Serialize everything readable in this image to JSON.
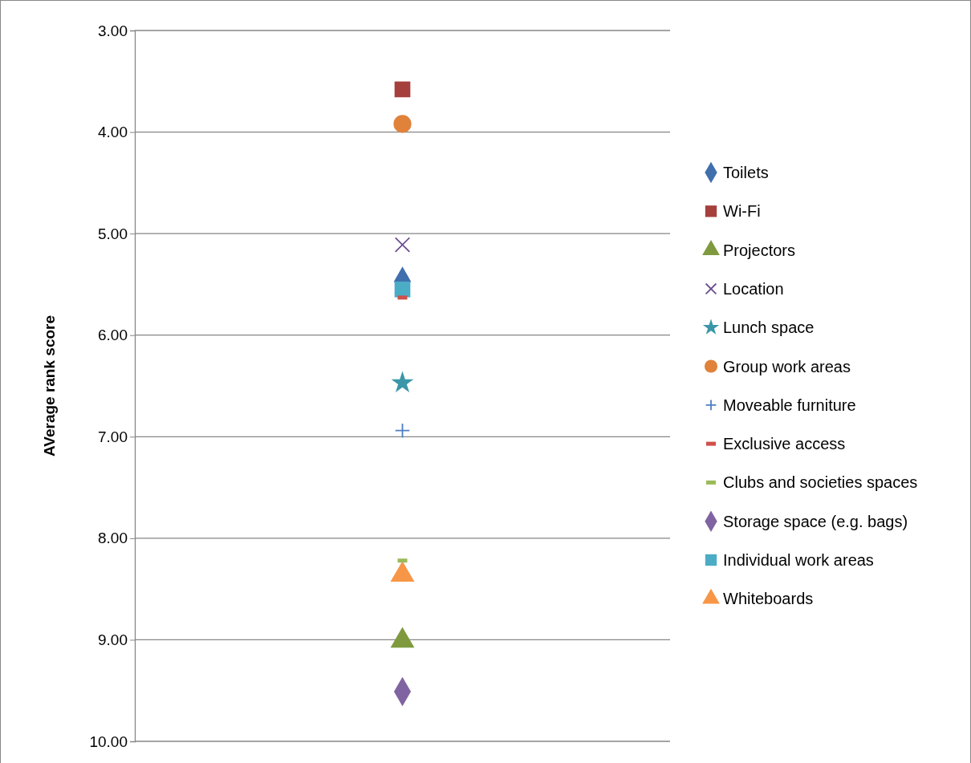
{
  "chart_data": {
    "type": "scatter",
    "ylabel": "AVerage rank score",
    "categories": [
      null
    ],
    "ylim": [
      10,
      3
    ],
    "yticks": [
      {
        "value": 3,
        "label": "3.00"
      },
      {
        "value": 4,
        "label": "4.00"
      },
      {
        "value": 5,
        "label": "5.00"
      },
      {
        "value": 6,
        "label": "6.00"
      },
      {
        "value": 7,
        "label": "7.00"
      },
      {
        "value": 8,
        "label": "8.00"
      },
      {
        "value": 9,
        "label": "9.00"
      },
      {
        "value": 10,
        "label": "10.00"
      }
    ],
    "grid": "y",
    "legend": "right",
    "tick_labels": "y",
    "series": [
      {
        "name": "Toilets",
        "color": "#3f6fad",
        "marker": "diamond",
        "values": [
          5.47
        ]
      },
      {
        "name": "Wi-Fi",
        "color": "#a5403c",
        "marker": "square",
        "values": [
          3.58
        ]
      },
      {
        "name": "Projectors",
        "color": "#7f9a3e",
        "marker": "triangle",
        "values": [
          9.01
        ]
      },
      {
        "name": "Location",
        "color": "#6a4f8f",
        "marker": "cross",
        "values": [
          5.11
        ]
      },
      {
        "name": "Lunch space",
        "color": "#3a96a8",
        "marker": "star",
        "values": [
          6.47
        ]
      },
      {
        "name": "Group work areas",
        "color": "#e0823a",
        "marker": "circle",
        "values": [
          3.92
        ]
      },
      {
        "name": "Moveable furniture",
        "color": "#4d7fc4",
        "marker": "plus",
        "values": [
          6.94
        ]
      },
      {
        "name": "Exclusive access",
        "color": "#d0504a",
        "values": [
          5.63
        ]
      },
      {
        "name": "Clubs and societies spaces",
        "color": "#9bbb59",
        "values": [
          8.22
        ]
      },
      {
        "name": "Storage space (e.g. bags)",
        "color": "#8064a2",
        "marker": "diamond",
        "values": [
          9.51
        ]
      },
      {
        "name": "Individual work areas",
        "color": "#4bacc6",
        "marker": "square",
        "values": [
          5.55
        ]
      },
      {
        "name": "Whiteboards",
        "color": "#f79646",
        "marker": "triangle",
        "values": [
          8.36
        ]
      }
    ]
  }
}
